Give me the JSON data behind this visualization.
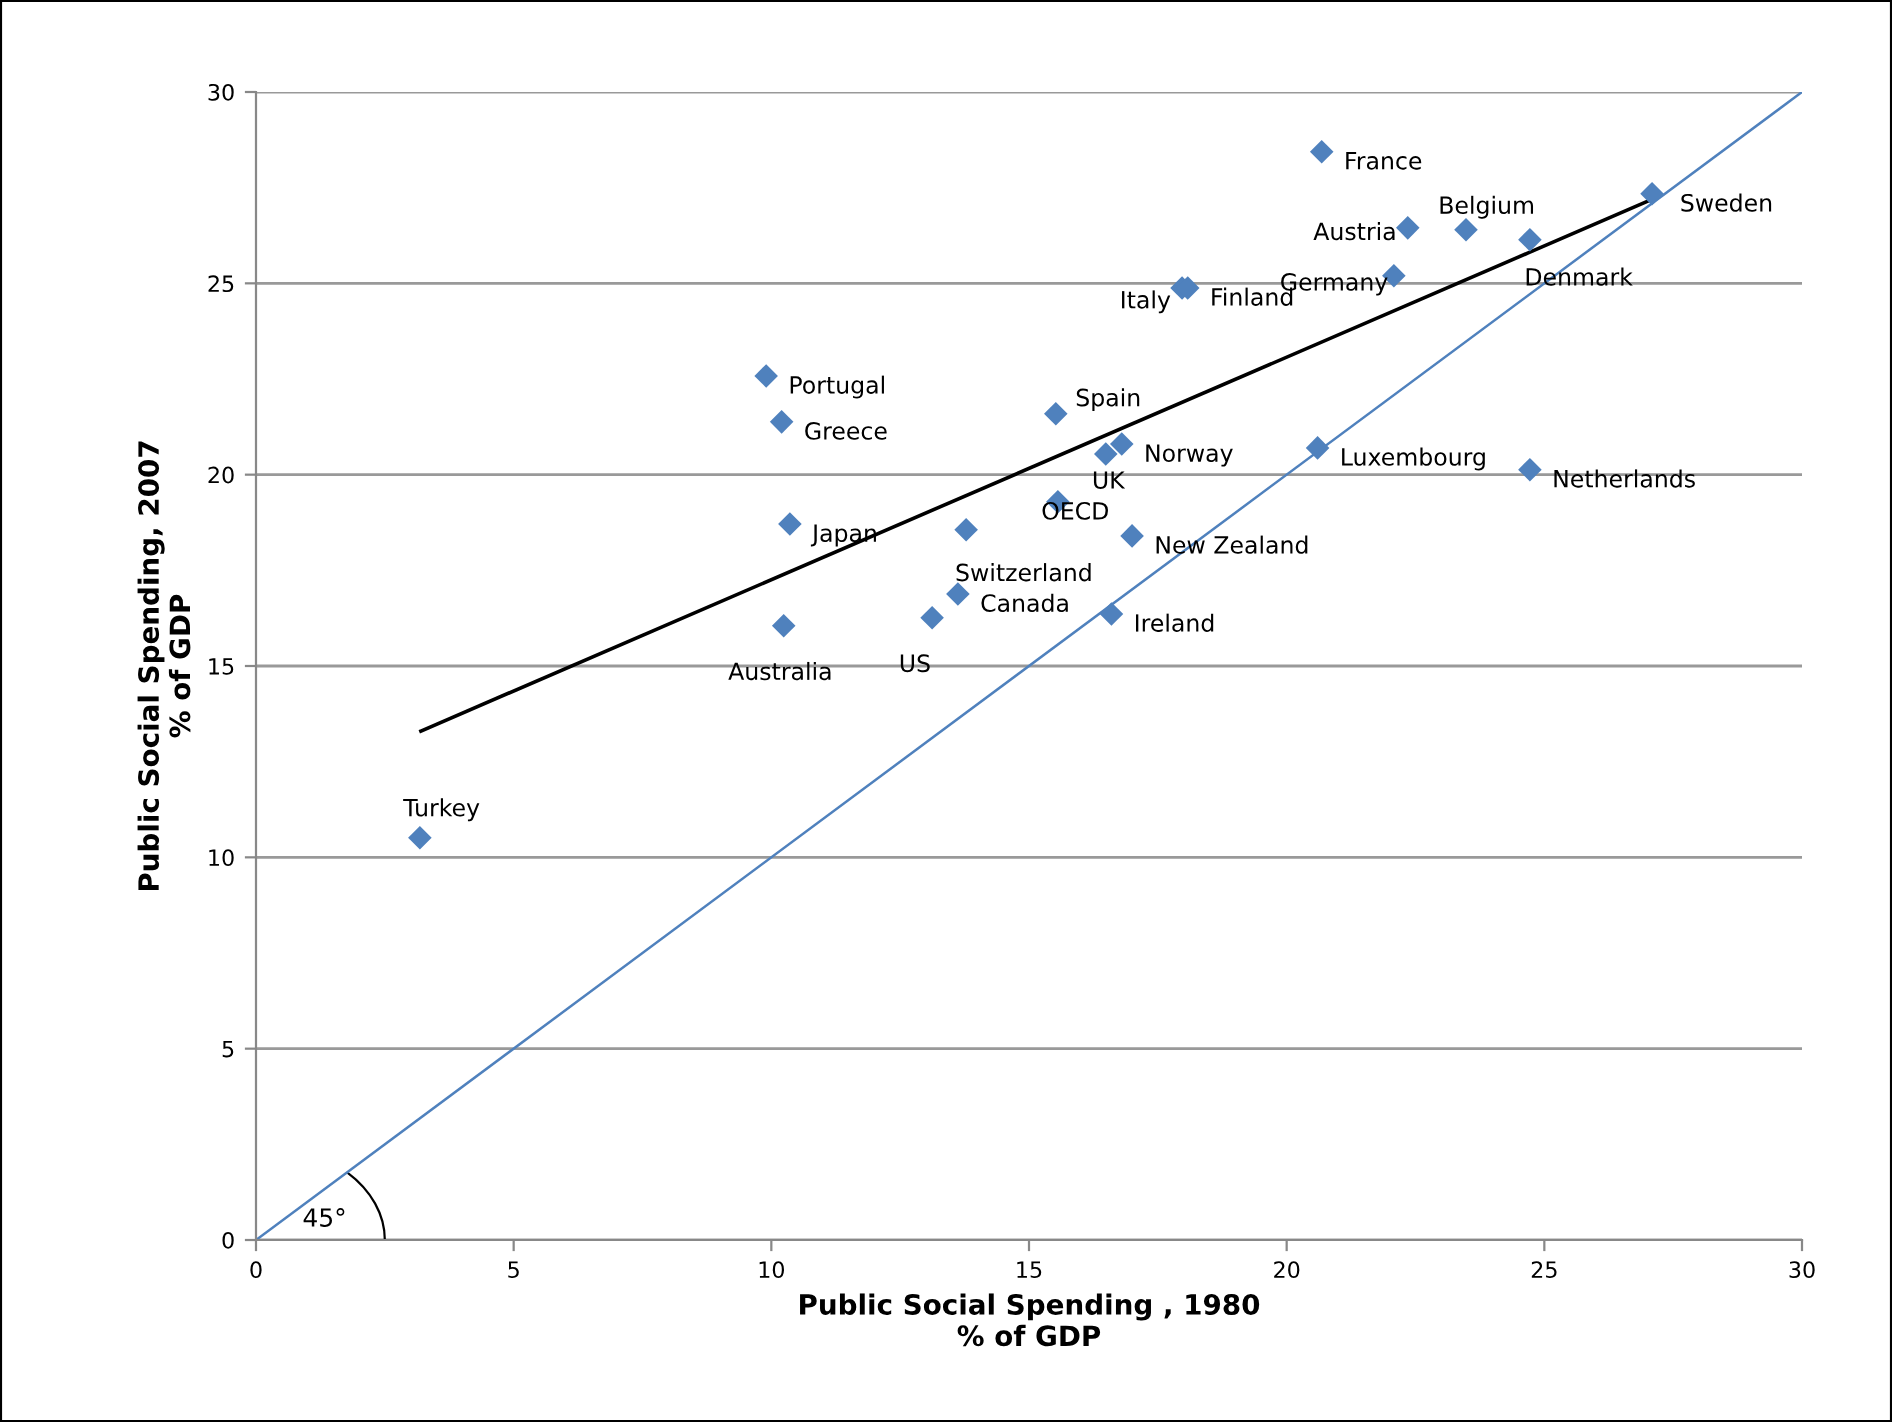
{
  "chart_data": {
    "type": "scatter",
    "xlabel": "Public Social Spending , 1980\n% of GDP",
    "ylabel": "Public Social Spending, 2007\n% of GDP",
    "xlim": [
      0,
      30
    ],
    "ylim": [
      0,
      30
    ],
    "xticks": [
      0,
      5,
      10,
      15,
      20,
      25,
      30
    ],
    "yticks": [
      0,
      5,
      10,
      15,
      20,
      25,
      30
    ],
    "grid": "y",
    "marker": "diamond",
    "series": [
      {
        "color": "#4f81bd",
        "x": [
          20.68,
          27.09,
          23.48,
          22.35,
          24.72,
          22.08,
          17.97,
          18.08,
          15.52,
          16.8,
          16.49,
          20.6,
          24.72,
          15.56,
          17.0,
          16.6,
          9.9,
          10.2,
          10.36,
          13.78,
          13.62,
          13.12,
          10.24,
          3.18
        ],
        "values": [
          28.44,
          27.34,
          26.4,
          26.45,
          26.14,
          25.2,
          24.88,
          24.88,
          21.59,
          20.8,
          20.54,
          20.7,
          20.13,
          19.29,
          18.4,
          16.36,
          22.58,
          21.38,
          18.71,
          18.56,
          16.88,
          16.26,
          16.05,
          10.51
        ]
      },
      {
        "type": "line",
        "color": "#000000",
        "marker": "none",
        "x": [
          3.2,
          27.1
        ],
        "values": [
          13.3,
          27.2
        ]
      },
      {
        "type": "line",
        "color": "#4f81bd",
        "marker": "none",
        "x": [
          0,
          30
        ],
        "values": [
          0,
          30
        ]
      }
    ],
    "annotations": [
      {
        "text": "France",
        "x": 20.68,
        "y": 28.44
      },
      {
        "text": "Sweden",
        "x": 27.09,
        "y": 27.34
      },
      {
        "text": "Belgium",
        "x": 23.48,
        "y": 26.4
      },
      {
        "text": "Austria",
        "x": 22.35,
        "y": 26.45
      },
      {
        "text": "Denmark",
        "x": 24.72,
        "y": 26.14
      },
      {
        "text": "Germany",
        "x": 22.08,
        "y": 25.2
      },
      {
        "text": "Italy",
        "x": 17.97,
        "y": 24.88
      },
      {
        "text": "Finland",
        "x": 18.08,
        "y": 24.88
      },
      {
        "text": "Spain",
        "x": 15.52,
        "y": 21.59
      },
      {
        "text": "Norway",
        "x": 16.8,
        "y": 20.8
      },
      {
        "text": "UK",
        "x": 16.49,
        "y": 20.54
      },
      {
        "text": "Luxembourg",
        "x": 20.6,
        "y": 20.7
      },
      {
        "text": "Netherlands",
        "x": 24.72,
        "y": 20.13
      },
      {
        "text": "OECD",
        "x": 15.56,
        "y": 19.29
      },
      {
        "text": "New Zealand",
        "x": 17.0,
        "y": 18.4
      },
      {
        "text": "Ireland",
        "x": 16.6,
        "y": 16.36
      },
      {
        "text": "Portugal",
        "x": 9.9,
        "y": 22.58
      },
      {
        "text": "Greece",
        "x": 10.2,
        "y": 21.38
      },
      {
        "text": "Japan",
        "x": 10.36,
        "y": 18.71
      },
      {
        "text": "Switzerland",
        "x": 13.78,
        "y": 18.56
      },
      {
        "text": "Canada",
        "x": 13.62,
        "y": 16.88
      },
      {
        "text": "US",
        "x": 13.12,
        "y": 16.26
      },
      {
        "text": "Australia",
        "x": 10.24,
        "y": 16.05
      },
      {
        "text": "Turkey",
        "x": 3.18,
        "y": 10.51
      },
      "45°"
    ]
  }
}
